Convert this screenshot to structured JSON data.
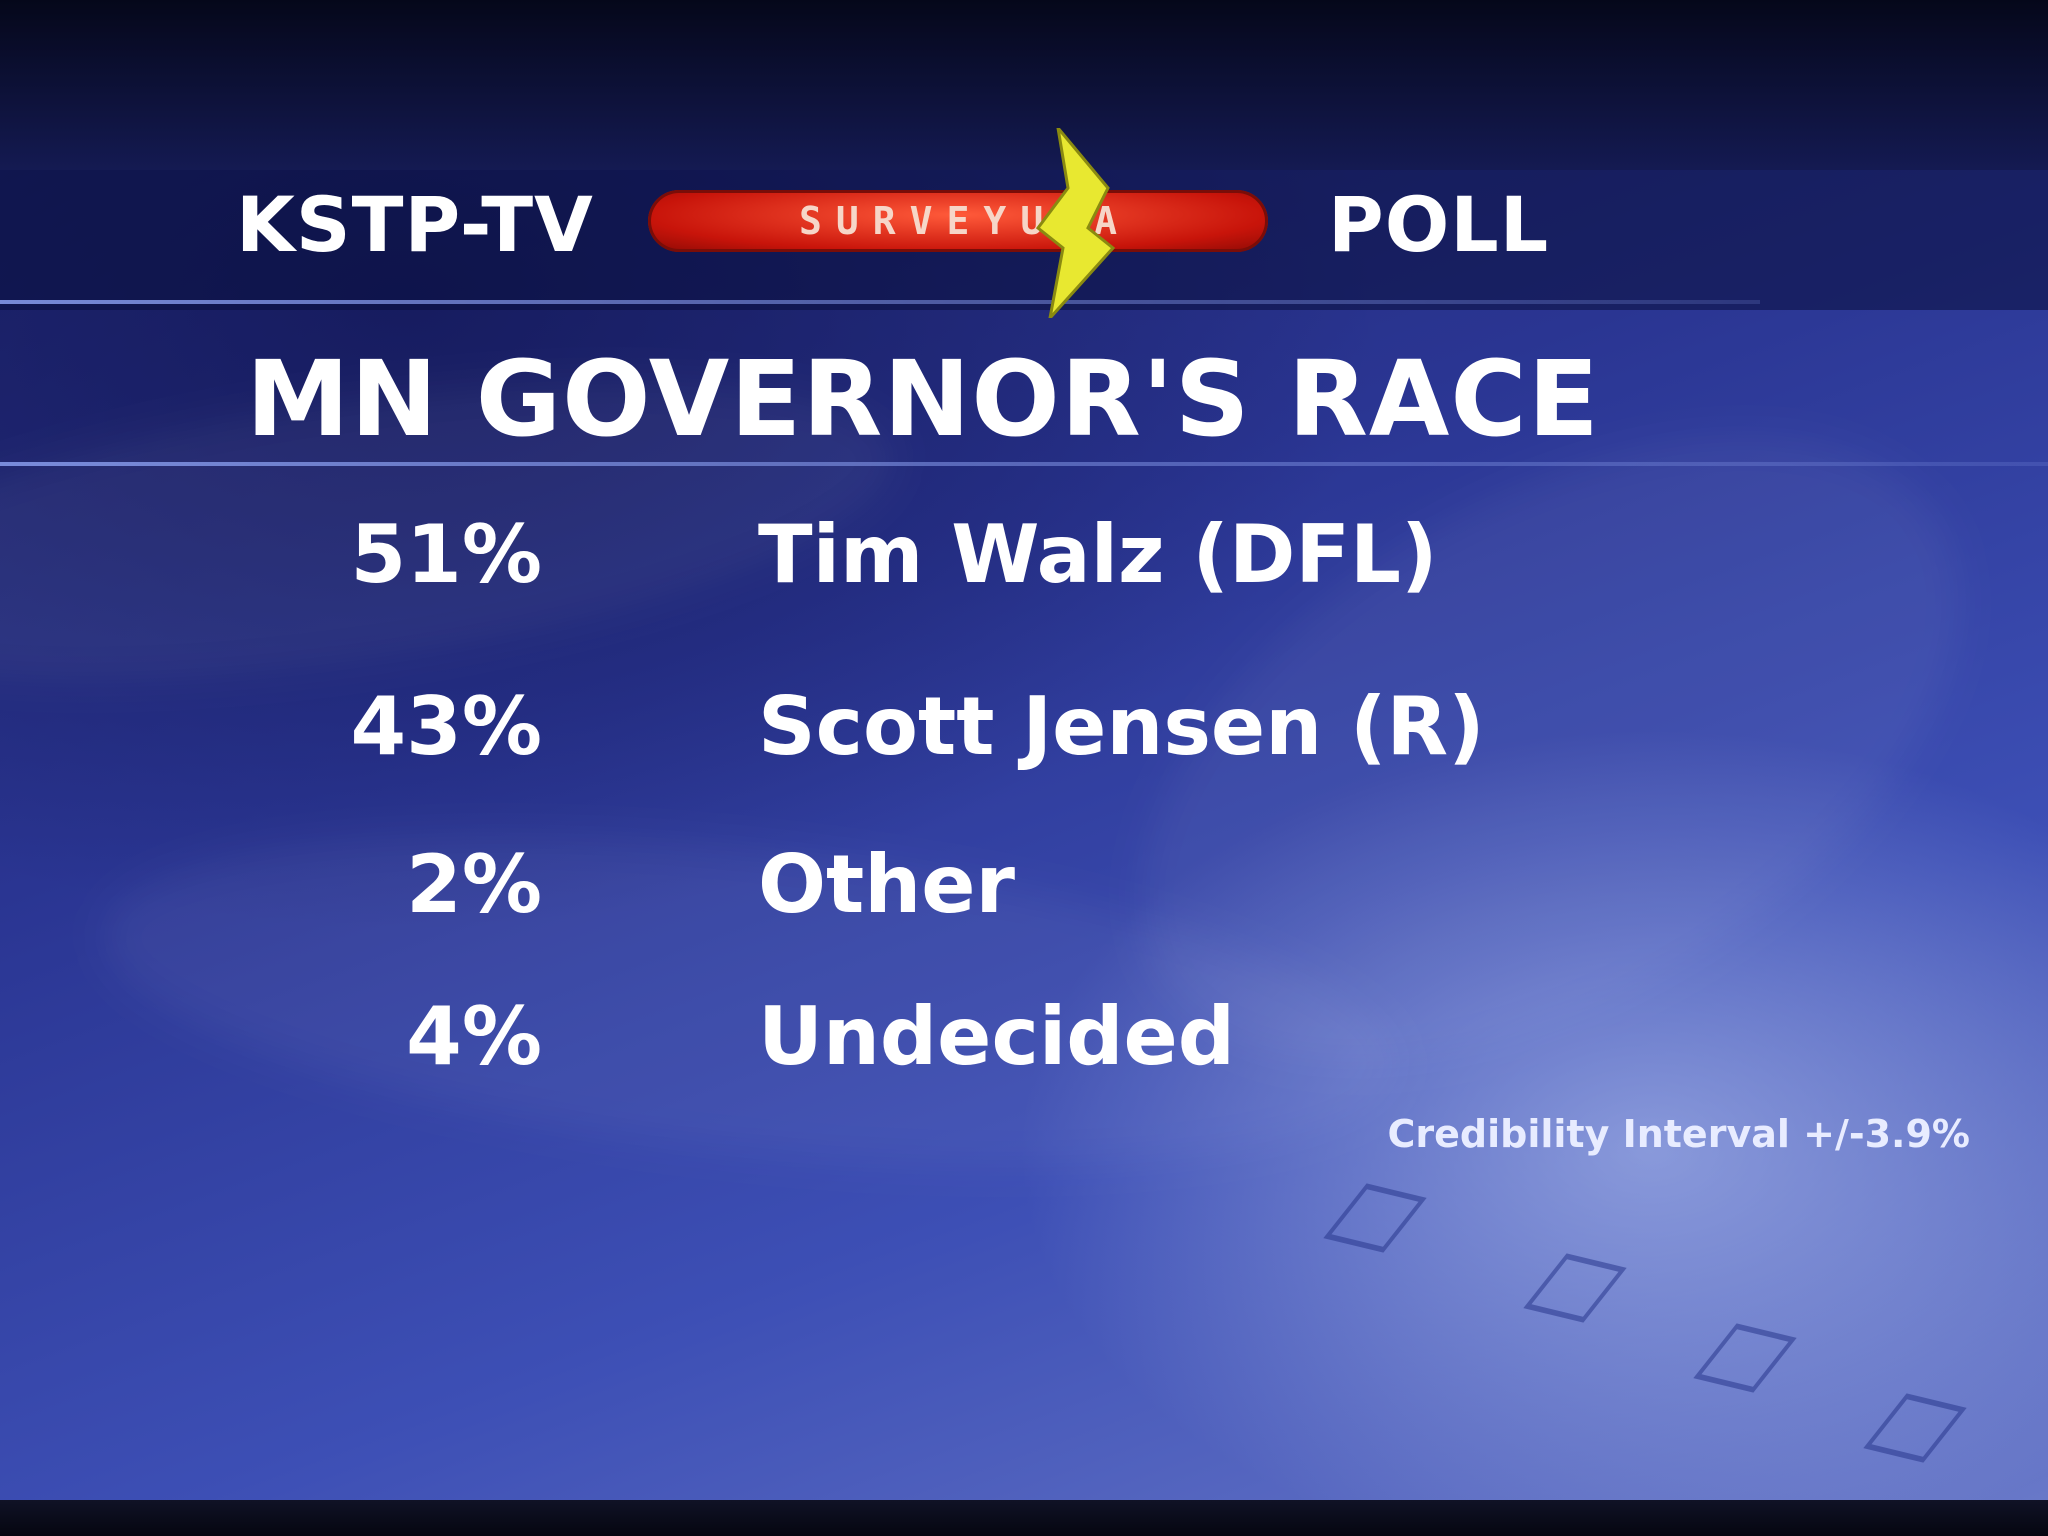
{
  "header": {
    "station": "KSTP-TV",
    "logo_text": "SURVEYUSA",
    "poll_word": "POLL"
  },
  "title": "MN GOVERNOR'S RACE",
  "results": [
    {
      "percent": "51%",
      "candidate": "Tim Walz (DFL)"
    },
    {
      "percent": "43%",
      "candidate": "Scott Jensen (R)"
    },
    {
      "percent": "2%",
      "candidate": "Other"
    },
    {
      "percent": "4%",
      "candidate": "Undecided"
    }
  ],
  "footnote": "Credibility Interval +/-3.9%",
  "colors": {
    "background": "#2a3592",
    "logo_red": "#d8170c",
    "logo_star": "#e8e830",
    "text": "#ffffff"
  }
}
